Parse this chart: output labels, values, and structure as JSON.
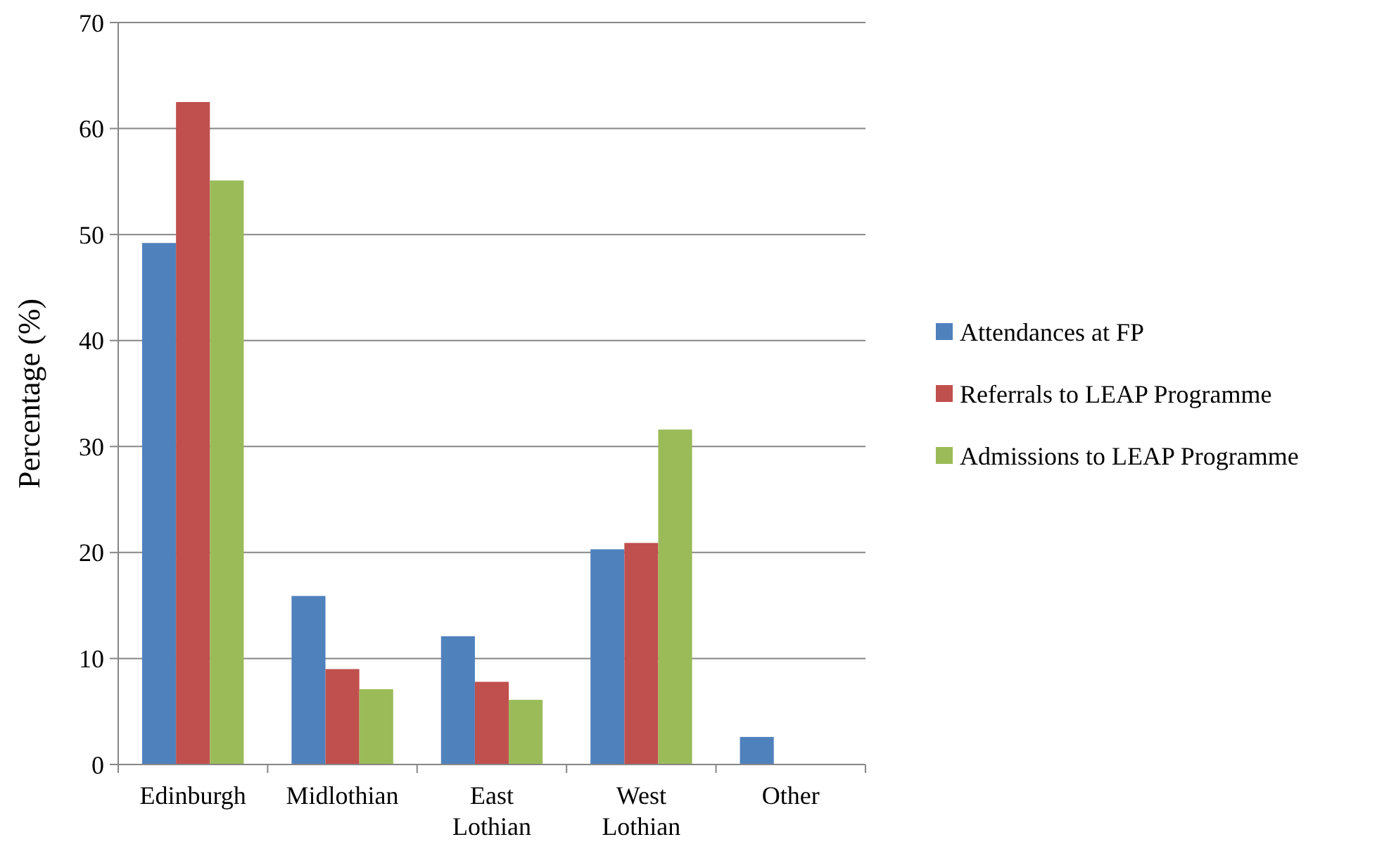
{
  "chart_data": {
    "type": "bar",
    "ylabel": "Percentage (%)",
    "categories": [
      "Edinburgh",
      "Midlothian",
      "East Lothian",
      "West Lothian",
      "Other"
    ],
    "series": [
      {
        "name": "Attendances at FP",
        "color": "#4f81bd",
        "values": [
          49.2,
          15.9,
          12.1,
          20.3,
          2.6
        ]
      },
      {
        "name": "Referrals to LEAP Programme",
        "color": "#c0504d",
        "values": [
          62.5,
          9.0,
          7.8,
          20.9,
          0
        ]
      },
      {
        "name": "Admissions to LEAP Programme",
        "color": "#9bbb59",
        "values": [
          55.1,
          7.1,
          6.1,
          31.6,
          0
        ]
      }
    ],
    "ylim": [
      0,
      70
    ],
    "yticks": [
      0,
      10,
      20,
      30,
      40,
      50,
      60,
      70
    ],
    "grid": "y",
    "legend": "right"
  }
}
